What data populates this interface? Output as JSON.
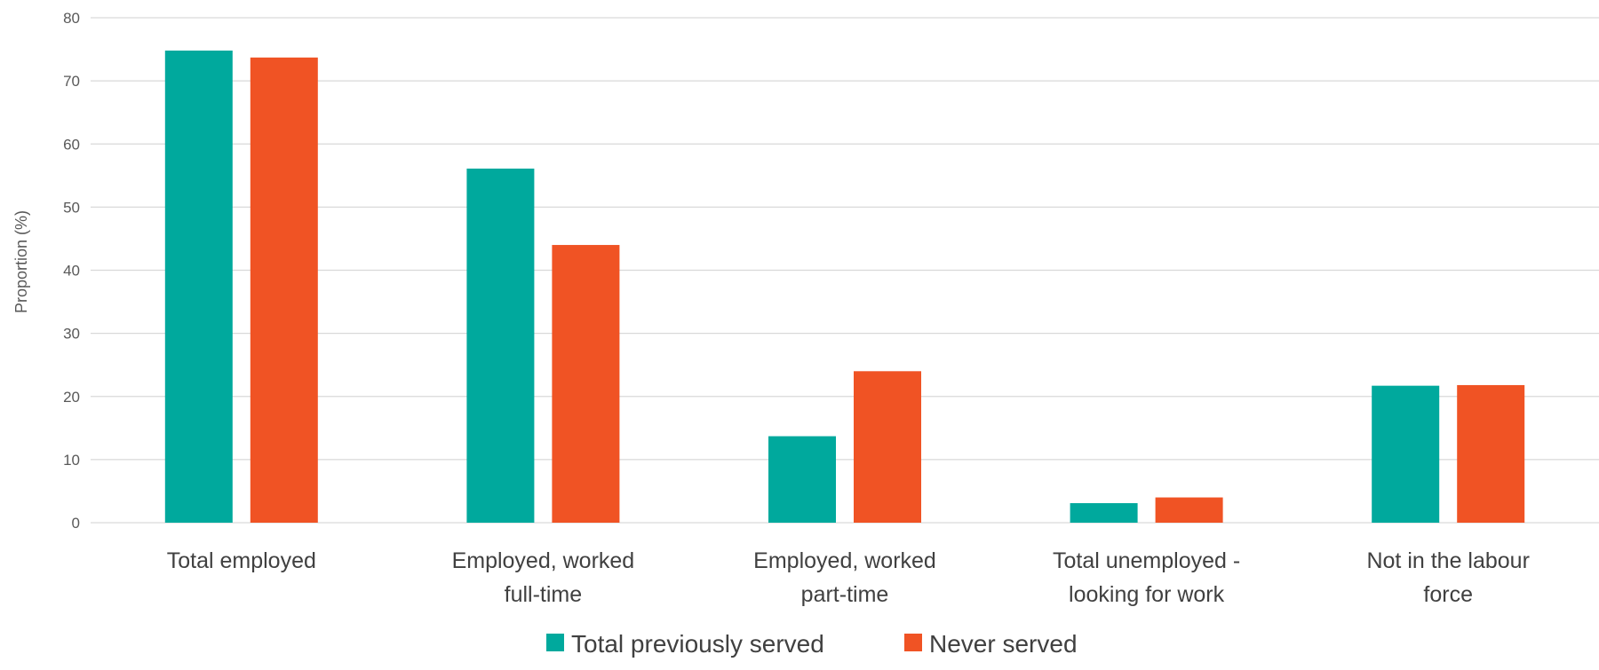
{
  "chart_data": {
    "type": "bar",
    "title": "",
    "xlabel": "",
    "ylabel": "Proportion (%)",
    "ylim": [
      0,
      80
    ],
    "yticks": [
      0,
      10,
      20,
      30,
      40,
      50,
      60,
      70,
      80
    ],
    "grid": true,
    "legend_position": "bottom",
    "categories": [
      [
        "Total employed"
      ],
      [
        "Employed, worked",
        "full-time"
      ],
      [
        "Employed, worked",
        "part-time"
      ],
      [
        "Total unemployed -",
        "looking for work"
      ],
      [
        "Not in the labour",
        "force"
      ]
    ],
    "series": [
      {
        "name": "Total previously served",
        "color": "#00a99d",
        "values": [
          74.8,
          56.1,
          13.7,
          3.1,
          21.7
        ]
      },
      {
        "name": "Never served",
        "color": "#f05324",
        "values": [
          73.7,
          44.0,
          24.0,
          4.0,
          21.8
        ]
      }
    ]
  }
}
